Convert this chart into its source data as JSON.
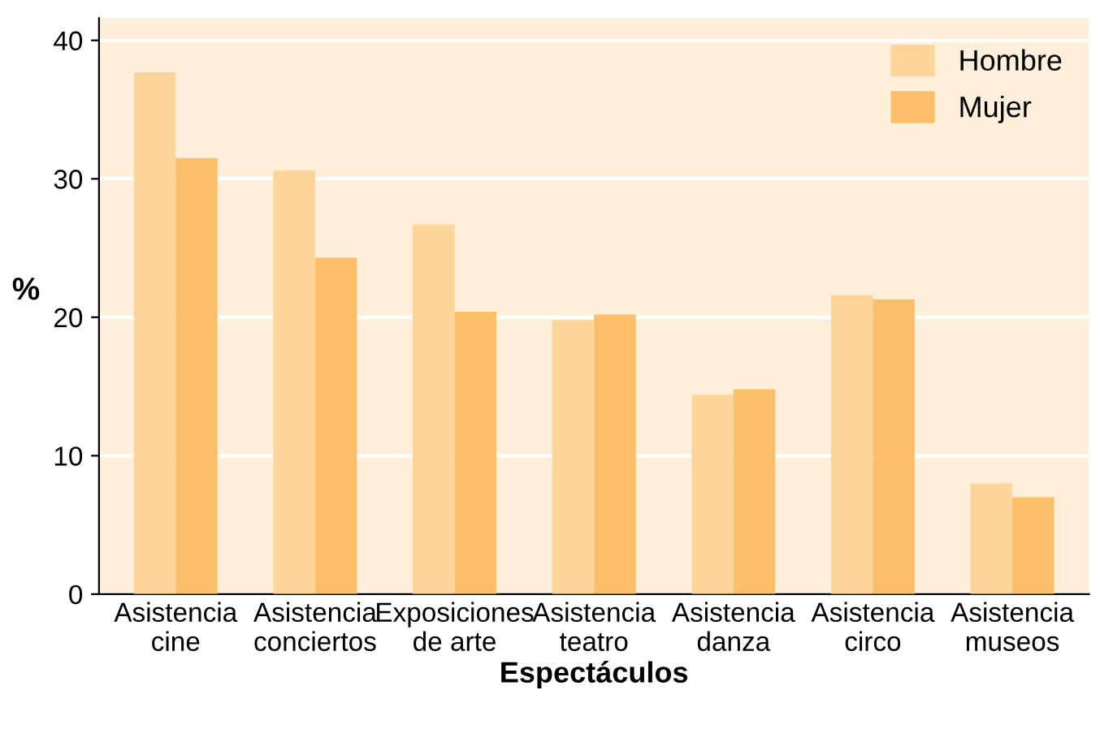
{
  "chart_data": {
    "type": "bar",
    "xlabel": "Espectáculos",
    "ylabel": "%",
    "categories": [
      "Asistencia\ncine",
      "Asistencia\nconciertos",
      "Exposiciones\nde arte",
      "Asistencia\nteatro",
      "Asistencia\ndanza",
      "Asistencia\ncirco",
      "Asistencia\nmuseos"
    ],
    "series": [
      {
        "name": "Hombre",
        "color": "#fdd49a",
        "values": [
          37.7,
          30.6,
          26.7,
          19.8,
          14.4,
          21.6,
          8.0
        ]
      },
      {
        "name": "Mujer",
        "color": "#fbbf6a",
        "values": [
          31.5,
          24.3,
          20.4,
          20.2,
          14.8,
          21.3,
          7.0
        ]
      }
    ],
    "ylim": [
      0,
      41.6
    ],
    "yticks": [
      0,
      10,
      20,
      30,
      40
    ],
    "grid": "y",
    "legend": "top right"
  }
}
